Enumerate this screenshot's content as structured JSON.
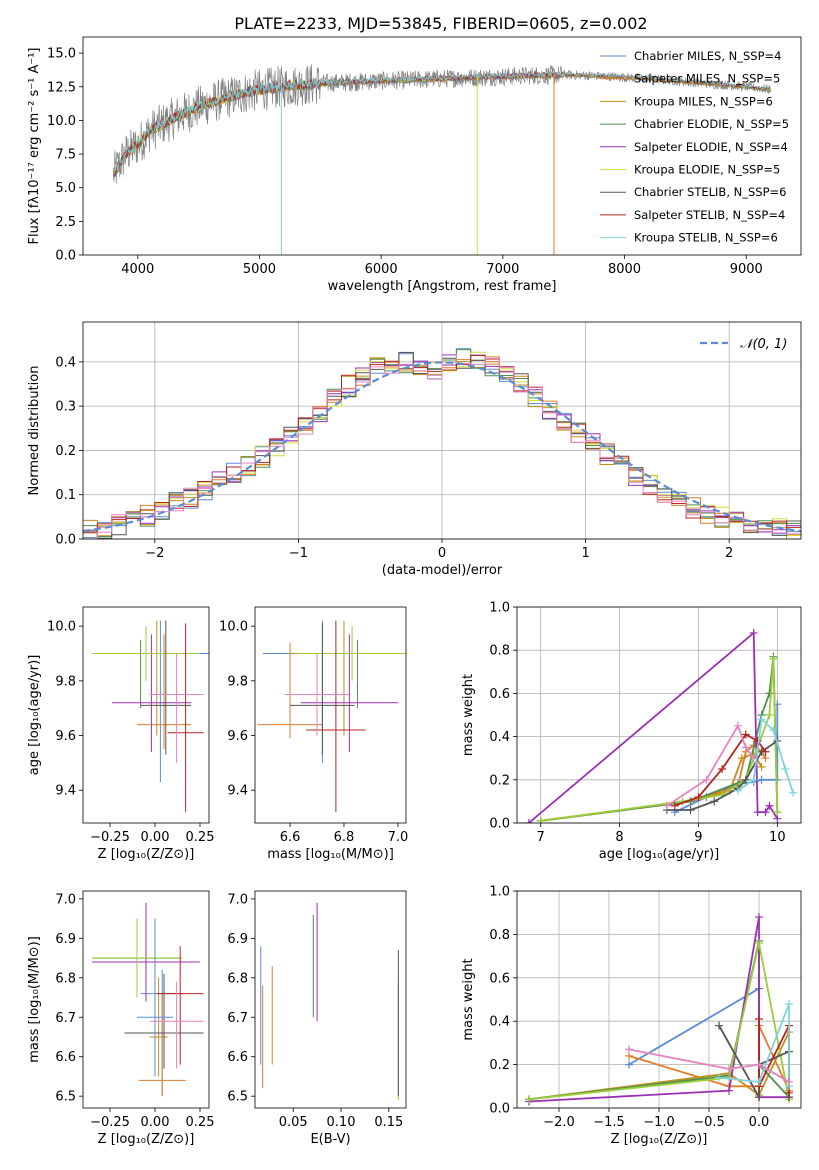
{
  "figure": {
    "title": "PLATE=2233, MJD=53845, FIBERID=0605, z=0.002"
  },
  "colors": {
    "series": [
      "#5b8bd6",
      "#e07c2c",
      "#c28e1c",
      "#4f8f4f",
      "#9b30b5",
      "#d4de3c",
      "#555555",
      "#b5251f",
      "#7fd3de"
    ],
    "data_gray": "#808080",
    "nfit": "#5b8bd6",
    "model_pink": "#e584c0",
    "model_limegreen": "#9bcc3a",
    "grid": "#b0b0b0"
  },
  "chart_data": [
    {
      "id": "spectrum",
      "type": "line",
      "title": "PLATE=2233, MJD=53845, FIBERID=0605, z=0.002",
      "xlabel": "wavelength [Angstrom, rest frame]",
      "ylabel": "Flux [fλ10⁻¹⁷ erg cm⁻² s⁻¹ A⁻¹]",
      "xlim": [
        3550,
        9450
      ],
      "ylim": [
        0,
        16.2
      ],
      "xticks": [
        4000,
        5000,
        6000,
        7000,
        8000,
        9000
      ],
      "yticks": [
        0.0,
        2.5,
        5.0,
        7.5,
        10.0,
        12.5,
        15.0
      ],
      "ytick_labels": [
        "0.0",
        "2.5",
        "5.0",
        "7.5",
        "10.0",
        "12.5",
        "15.0"
      ],
      "grid": false,
      "legend_position": "upper right",
      "legend": [
        "Chabrier MILES, N_SSP=4",
        "Salpeter MILES, N_SSP=5",
        "Kroupa MILES, N_SSP=6",
        "Chabrier ELODIE, N_SSP=5",
        "Salpeter ELODIE, N_SSP=4",
        "Kroupa ELODIE, N_SSP=5",
        "Chabrier STELIB, N_SSP=6",
        "Salpeter STELIB, N_SSP=4",
        "Kroupa STELIB, N_SSP=6"
      ],
      "continuum": {
        "x": [
          3800,
          3900,
          4000,
          4100,
          4300,
          4500,
          4700,
          4900,
          5100,
          5300,
          5600,
          5900,
          6200,
          6500,
          6800,
          7100,
          7500,
          7800,
          8200,
          8600,
          9000,
          9200
        ],
        "y": [
          6.0,
          7.5,
          8.2,
          9.2,
          10.2,
          11.0,
          11.6,
          12.1,
          12.4,
          12.6,
          12.8,
          12.9,
          13.0,
          13.1,
          13.2,
          13.3,
          13.4,
          13.3,
          13.1,
          12.8,
          12.5,
          12.3
        ]
      },
      "dropouts": [
        {
          "x": 5180,
          "series_index": 8
        },
        {
          "x": 6790,
          "series_index": 5
        },
        {
          "x": 7420,
          "series_index": 1
        }
      ]
    },
    {
      "id": "residuals",
      "type": "histogram",
      "xlabel": "(data-model)/error",
      "ylabel": "Normed distribution",
      "xlim": [
        -2.5,
        2.5
      ],
      "ylim": [
        0,
        0.49
      ],
      "xticks": [
        -2,
        -1,
        0,
        1,
        2
      ],
      "xtick_labels": [
        "−2",
        "−1",
        "0",
        "1",
        "2"
      ],
      "yticks": [
        0.0,
        0.1,
        0.2,
        0.3,
        0.4
      ],
      "ytick_labels": [
        "0.0",
        "0.1",
        "0.2",
        "0.3",
        "0.4"
      ],
      "grid": true,
      "legend_position": "upper right",
      "legend": [
        "𝒩(0, 1)"
      ],
      "bin_width": 0.1,
      "bin_start": -2.5,
      "shape": {
        "centers": [
          -2.45,
          -2.35,
          -2.25,
          -2.15,
          -2.05,
          -1.95,
          -1.85,
          -1.75,
          -1.65,
          -1.55,
          -1.45,
          -1.35,
          -1.25,
          -1.15,
          -1.05,
          -0.95,
          -0.85,
          -0.75,
          -0.65,
          -0.55,
          -0.45,
          -0.35,
          -0.25,
          -0.15,
          -0.05,
          0.05,
          0.15,
          0.25,
          0.35,
          0.45,
          0.55,
          0.65,
          0.75,
          0.85,
          0.95,
          1.05,
          1.15,
          1.25,
          1.35,
          1.45,
          1.55,
          1.65,
          1.75,
          1.85,
          1.95,
          2.05,
          2.15,
          2.25,
          2.35,
          2.45
        ],
        "base": [
          0.018,
          0.025,
          0.032,
          0.042,
          0.052,
          0.064,
          0.08,
          0.092,
          0.112,
          0.13,
          0.148,
          0.168,
          0.185,
          0.205,
          0.23,
          0.26,
          0.29,
          0.32,
          0.345,
          0.37,
          0.385,
          0.395,
          0.4,
          0.395,
          0.385,
          0.395,
          0.41,
          0.405,
          0.39,
          0.375,
          0.35,
          0.32,
          0.29,
          0.265,
          0.24,
          0.215,
          0.19,
          0.165,
          0.14,
          0.12,
          0.1,
          0.085,
          0.072,
          0.06,
          0.05,
          0.04,
          0.032,
          0.026,
          0.021,
          0.017
        ]
      }
    },
    {
      "id": "age_vs_Z",
      "type": "errorbar",
      "xlabel": "Z [log₁₀(Z/Z⊙)]",
      "ylabel": "age  [log₁₀(age/yr)]",
      "xlim": [
        -0.4,
        0.3
      ],
      "ylim": [
        9.28,
        10.07
      ],
      "xticks": [
        -0.25,
        0.0,
        0.25
      ],
      "xtick_labels": [
        "−0.25",
        "0.00",
        "0.25"
      ],
      "yticks": [
        9.4,
        9.6,
        9.8,
        10.0
      ],
      "ytick_labels": [
        "9.4",
        "9.6",
        "9.8",
        "10.0"
      ],
      "grid": false,
      "points": [
        {
          "x": 0.03,
          "y": 9.9,
          "xerr": 0.28,
          "yerr": [
            0.47,
            0.12
          ]
        },
        {
          "x": 0.05,
          "y": 9.64,
          "xerr": 0.15,
          "yerr": [
            0.09,
            0.33
          ]
        },
        {
          "x": 0.01,
          "y": 9.9,
          "xerr": 0.2,
          "yerr": [
            0.3,
            0.12
          ]
        },
        {
          "x": -0.08,
          "y": 9.9,
          "xerr": 0.25,
          "yerr": [
            0.2,
            0.05
          ]
        },
        {
          "x": -0.02,
          "y": 9.72,
          "xerr": 0.22,
          "yerr": [
            0.18,
            0.25
          ]
        },
        {
          "x": -0.05,
          "y": 9.9,
          "xerr": 0.3,
          "yerr": [
            0.1,
            0.1
          ]
        },
        {
          "x": 0.06,
          "y": 9.71,
          "xerr": 0.14,
          "yerr": [
            0.18,
            0.31
          ]
        },
        {
          "x": 0.17,
          "y": 9.61,
          "xerr": 0.1,
          "yerr": [
            0.29,
            0.4
          ]
        },
        {
          "x": 0.12,
          "y": 9.75,
          "xerr": 0.15,
          "yerr": [
            0.25,
            0.15
          ]
        }
      ]
    },
    {
      "id": "age_vs_mass",
      "type": "errorbar",
      "xlabel": "mass [log₁₀(M/M⊙)]",
      "ylabel": "",
      "xlim": [
        6.47,
        7.03
      ],
      "ylim": [
        9.28,
        10.07
      ],
      "xticks": [
        6.6,
        6.8,
        7.0
      ],
      "xtick_labels": [
        "6.6",
        "6.8",
        "7.0"
      ],
      "yticks": [
        9.4,
        9.6,
        9.8,
        10.0
      ],
      "ytick_labels": [
        "9.4",
        "9.6",
        "9.8",
        "10.0"
      ],
      "grid": false,
      "points": [
        {
          "x": 6.72,
          "y": 9.9,
          "xerr": 0.22,
          "yerr": [
            0.4,
            0.12
          ]
        },
        {
          "x": 6.6,
          "y": 9.64,
          "xerr": 0.12,
          "yerr": [
            0.05,
            0.3
          ]
        },
        {
          "x": 6.8,
          "y": 9.9,
          "xerr": 0.2,
          "yerr": [
            0.3,
            0.12
          ]
        },
        {
          "x": 6.85,
          "y": 9.9,
          "xerr": 0.15,
          "yerr": [
            0.2,
            0.05
          ]
        },
        {
          "x": 6.82,
          "y": 9.72,
          "xerr": 0.18,
          "yerr": [
            0.18,
            0.25
          ]
        },
        {
          "x": 6.83,
          "y": 9.9,
          "xerr": 0.2,
          "yerr": [
            0.1,
            0.1
          ]
        },
        {
          "x": 6.72,
          "y": 9.71,
          "xerr": 0.12,
          "yerr": [
            0.18,
            0.3
          ]
        },
        {
          "x": 6.77,
          "y": 9.62,
          "xerr": 0.11,
          "yerr": [
            0.3,
            0.4
          ]
        },
        {
          "x": 6.7,
          "y": 9.75,
          "xerr": 0.12,
          "yerr": [
            0.15,
            0.15
          ]
        }
      ]
    },
    {
      "id": "weight_vs_age",
      "type": "line",
      "xlabel": "age  [log₁₀(age/yr)]",
      "ylabel": "mass weight",
      "xlim": [
        6.7,
        10.3
      ],
      "ylim": [
        0,
        1.0
      ],
      "xticks": [
        7,
        8,
        9,
        10
      ],
      "xtick_labels": [
        "7",
        "8",
        "9",
        "10"
      ],
      "yticks": [
        0.0,
        0.2,
        0.4,
        0.6,
        0.8,
        1.0
      ],
      "ytick_labels": [
        "0.0",
        "0.2",
        "0.4",
        "0.6",
        "0.8",
        "1.0"
      ],
      "grid": true,
      "series": [
        {
          "x": [
            8.7,
            9.1,
            9.5,
            9.7,
            9.8,
            10.0,
            10.0
          ],
          "y": [
            0.05,
            0.12,
            0.18,
            0.19,
            0.2,
            0.2,
            0.55
          ]
        },
        {
          "x": [
            7.0,
            8.9,
            9.5,
            9.6,
            9.7,
            9.8,
            9.85
          ],
          "y": [
            0.01,
            0.1,
            0.17,
            0.33,
            0.36,
            0.33,
            0.3
          ]
        },
        {
          "x": [
            7.0,
            8.9,
            9.4,
            9.55,
            9.7,
            9.8
          ],
          "y": [
            0.01,
            0.1,
            0.15,
            0.3,
            0.32,
            0.26
          ]
        },
        {
          "x": [
            7.0,
            8.9,
            9.6,
            9.8,
            9.9,
            9.95,
            10.0
          ],
          "y": [
            0.01,
            0.1,
            0.2,
            0.5,
            0.6,
            0.77,
            0.05
          ]
        },
        {
          "x": [
            6.85,
            9.7,
            9.75,
            9.85,
            9.9,
            10.0
          ],
          "y": [
            0.0,
            0.88,
            0.05,
            0.05,
            0.08,
            0.02
          ]
        },
        {
          "x": [
            7.0,
            8.8,
            9.3,
            9.6,
            9.9,
            9.95,
            10.0
          ],
          "y": [
            0.01,
            0.1,
            0.13,
            0.2,
            0.5,
            0.76,
            0.05
          ]
        },
        {
          "x": [
            8.6,
            8.9,
            9.2,
            9.5,
            9.6,
            9.8,
            10.0
          ],
          "y": [
            0.06,
            0.06,
            0.1,
            0.16,
            0.2,
            0.33,
            0.38
          ]
        },
        {
          "x": [
            8.7,
            9.0,
            9.3,
            9.6,
            9.75,
            9.85
          ],
          "y": [
            0.08,
            0.12,
            0.25,
            0.41,
            0.38,
            0.33
          ]
        },
        {
          "x": [
            9.5,
            9.7,
            9.8,
            9.95,
            10.1,
            10.2
          ],
          "y": [
            0.15,
            0.2,
            0.48,
            0.43,
            0.25,
            0.14
          ]
        },
        {
          "x": [
            8.6,
            9.1,
            9.5,
            9.6,
            9.7
          ],
          "y": [
            0.08,
            0.2,
            0.45,
            0.35,
            0.3
          ]
        }
      ]
    },
    {
      "id": "mass_vs_Z",
      "type": "errorbar",
      "xlabel": "Z [log₁₀(Z/Z⊙)]",
      "ylabel": "mass [log₁₀(M/M⊙)]",
      "xlim": [
        -0.4,
        0.3
      ],
      "ylim": [
        6.47,
        7.02
      ],
      "xticks": [
        -0.25,
        0.0,
        0.25
      ],
      "xtick_labels": [
        "−0.25",
        "0.00",
        "0.25"
      ],
      "yticks": [
        6.5,
        6.6,
        6.7,
        6.8,
        6.9,
        7.0
      ],
      "ytick_labels": [
        "6.5",
        "6.6",
        "6.7",
        "6.8",
        "6.9",
        "7.0"
      ],
      "grid": false,
      "points": [
        {
          "x": 0.04,
          "y": 6.76,
          "xerr": 0.12,
          "yerr": [
            0.26,
            0.06
          ]
        },
        {
          "x": 0.04,
          "y": 6.54,
          "xerr": 0.13,
          "yerr": [
            0.04,
            0.22
          ]
        },
        {
          "x": 0.02,
          "y": 6.65,
          "xerr": 0.05,
          "yerr": [
            0.1,
            0.15
          ]
        },
        {
          "x": -0.1,
          "y": 6.85,
          "xerr": 0.25,
          "yerr": [
            0.1,
            0.1
          ]
        },
        {
          "x": -0.05,
          "y": 6.84,
          "xerr": 0.3,
          "yerr": [
            0.1,
            0.15
          ]
        },
        {
          "x": -0.1,
          "y": 6.85,
          "xerr": 0.25,
          "yerr": [
            0.1,
            0.1
          ]
        },
        {
          "x": 0.05,
          "y": 6.66,
          "xerr": 0.22,
          "yerr": [
            0.09,
            0.15
          ]
        },
        {
          "x": 0.14,
          "y": 6.76,
          "xerr": 0.13,
          "yerr": [
            0.18,
            0.12
          ]
        },
        {
          "x": 0.12,
          "y": 6.69,
          "xerr": 0.15,
          "yerr": [
            0.12,
            0.1
          ]
        },
        {
          "x": 0.0,
          "y": 6.7,
          "xerr": 0.1,
          "yerr": [
            0.15,
            0.25
          ]
        }
      ]
    },
    {
      "id": "mass_vs_EBV",
      "type": "errorbar",
      "xlabel": "E(B-V)",
      "ylabel": "",
      "xlim": [
        0.01,
        0.168
      ],
      "ylim": [
        6.47,
        7.02
      ],
      "xticks": [
        0.05,
        0.1,
        0.15
      ],
      "xtick_labels": [
        "0.05",
        "0.10",
        "0.15"
      ],
      "yticks": [
        6.5,
        6.6,
        6.7,
        6.8,
        6.9,
        7.0
      ],
      "ytick_labels": [
        "6.5",
        "6.6",
        "6.7",
        "6.8",
        "6.9",
        "7.0"
      ],
      "grid": false,
      "points": [
        {
          "x": 0.016,
          "y": 6.71,
          "xerr": 0.0,
          "yerr": [
            0.13,
            0.17
          ]
        },
        {
          "x": 0.018,
          "y": 6.7,
          "xerr": 0.0,
          "yerr": [
            0.18,
            0.08
          ]
        },
        {
          "x": 0.028,
          "y": 6.71,
          "xerr": 0.0,
          "yerr": [
            0.13,
            0.12
          ]
        },
        {
          "x": 0.071,
          "y": 6.83,
          "xerr": 0.0,
          "yerr": [
            0.13,
            0.13
          ]
        },
        {
          "x": 0.075,
          "y": 6.84,
          "xerr": 0.0,
          "yerr": [
            0.15,
            0.15
          ]
        },
        {
          "x": 0.16,
          "y": 6.64,
          "xerr": 0.0,
          "yerr": [
            0.15,
            0.15
          ]
        },
        {
          "x": 0.16,
          "y": 6.7,
          "xerr": 0.0,
          "yerr": [
            0.2,
            0.17
          ]
        }
      ]
    },
    {
      "id": "weight_vs_Z",
      "type": "line",
      "xlabel": "Z [log₁₀(Z/Z⊙)]",
      "ylabel": "mass weight",
      "xlim": [
        -2.42,
        0.42
      ],
      "ylim": [
        0,
        1.0
      ],
      "xticks": [
        -2.0,
        -1.5,
        -1.0,
        -0.5,
        0.0
      ],
      "xtick_labels": [
        "−2.0",
        "−1.5",
        "−1.0",
        "−0.5",
        "0.0"
      ],
      "yticks": [
        0.0,
        0.2,
        0.4,
        0.6,
        0.8,
        1.0
      ],
      "ytick_labels": [
        "0.0",
        "0.2",
        "0.4",
        "0.6",
        "0.8",
        "1.0"
      ],
      "grid": true,
      "series": [
        {
          "x": [
            -1.3,
            0.0,
            0.0,
            0.3,
            0.3
          ],
          "y": [
            0.2,
            0.55,
            0.2,
            0.12,
            0.05
          ]
        },
        {
          "x": [
            -1.3,
            -0.3,
            0.0,
            0.0,
            0.3
          ],
          "y": [
            0.24,
            0.1,
            0.1,
            0.38,
            0.08
          ]
        },
        {
          "x": [
            -2.3,
            -0.3,
            0.0,
            0.3,
            0.3
          ],
          "y": [
            0.04,
            0.16,
            0.06,
            0.35,
            0.12
          ]
        },
        {
          "x": [
            -2.3,
            -0.3,
            0.0,
            0.0,
            0.3
          ],
          "y": [
            0.04,
            0.15,
            0.77,
            0.2,
            0.05
          ]
        },
        {
          "x": [
            -2.3,
            -0.3,
            0.0,
            0.0,
            0.3
          ],
          "y": [
            0.03,
            0.08,
            0.88,
            0.05,
            0.05
          ]
        },
        {
          "x": [
            -2.3,
            -0.3,
            0.0,
            0.3
          ],
          "y": [
            0.04,
            0.14,
            0.76,
            0.04
          ]
        },
        {
          "x": [
            -0.4,
            0.0,
            0.0,
            0.3,
            0.3
          ],
          "y": [
            0.38,
            0.05,
            0.2,
            0.26,
            0.05
          ]
        },
        {
          "x": [
            0.0,
            0.0,
            0.3,
            0.3
          ],
          "y": [
            0.41,
            0.1,
            0.38,
            0.07
          ]
        },
        {
          "x": [
            -0.4,
            0.0,
            0.3,
            0.3
          ],
          "y": [
            0.14,
            0.12,
            0.48,
            0.1
          ]
        },
        {
          "x": [
            -1.3,
            -0.3,
            0.0,
            0.3
          ],
          "y": [
            0.27,
            0.18,
            0.2,
            0.12
          ]
        }
      ]
    }
  ]
}
